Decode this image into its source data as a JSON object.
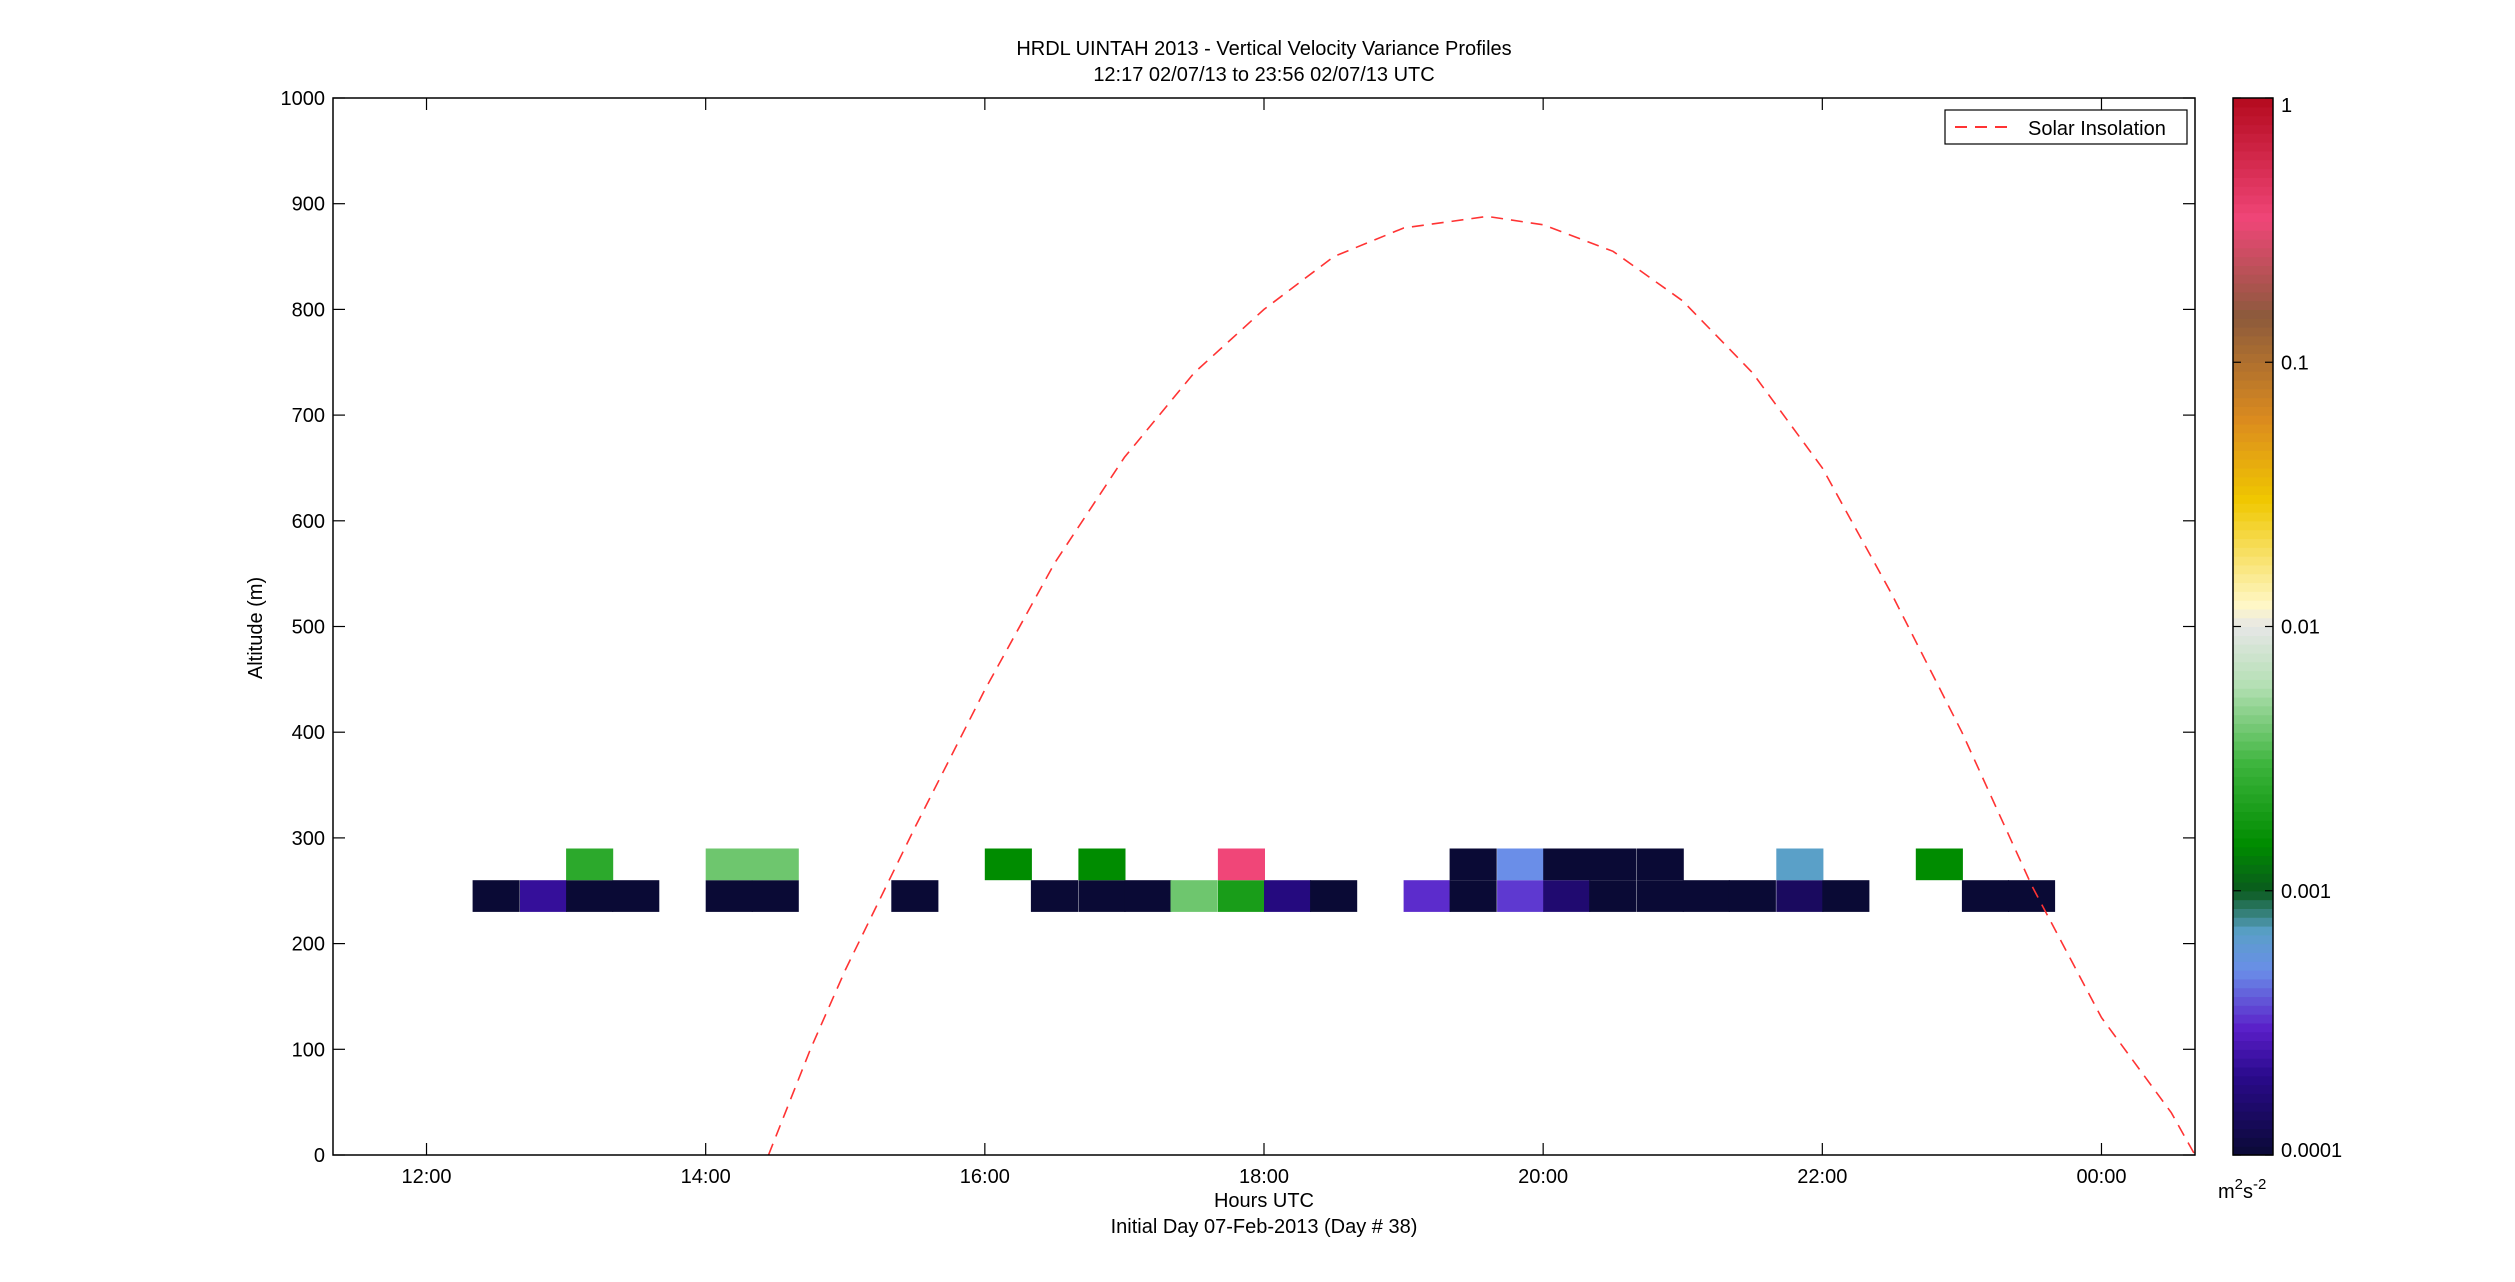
{
  "figure": {
    "title_line1": "HRDL UINTAH 2013 - Vertical Velocity Variance Profiles",
    "title_line2": "12:17 02/07/13 to 23:56 02/07/13  UTC",
    "xlabel": "Hours UTC",
    "footer": "Initial Day 07-Feb-2013 (Day # 38)",
    "ylabel": "Altitude (m)"
  },
  "colorbar": {
    "unit_base": "m",
    "unit_sup1": "2",
    "unit_mid": "s",
    "unit_sup2": "-2",
    "ticks": [
      {
        "label": "1",
        "value": 1
      },
      {
        "label": "0.1",
        "value": 0.1
      },
      {
        "label": "0.01",
        "value": 0.01
      },
      {
        "label": "0.001",
        "value": 0.001
      },
      {
        "label": "0.0001",
        "value": 0.0001
      }
    ],
    "range": [
      0.0001,
      1
    ],
    "scale": "log",
    "stops": [
      {
        "v": 0.0001,
        "color": "#0a0a35"
      },
      {
        "v": 0.0002,
        "color": "#2a0a8c"
      },
      {
        "v": 0.0003,
        "color": "#5a1ec8"
      },
      {
        "v": 0.0005,
        "color": "#6a8ee8"
      },
      {
        "v": 0.0007,
        "color": "#5aa0c8"
      },
      {
        "v": 0.001,
        "color": "#0a5a1e"
      },
      {
        "v": 0.0015,
        "color": "#008c00"
      },
      {
        "v": 0.003,
        "color": "#3cb43c"
      },
      {
        "v": 0.006,
        "color": "#b4e0b4"
      },
      {
        "v": 0.01,
        "color": "#e6e6e6"
      },
      {
        "v": 0.012,
        "color": "#fff8c8"
      },
      {
        "v": 0.03,
        "color": "#f0c800"
      },
      {
        "v": 0.06,
        "color": "#dc8c1e"
      },
      {
        "v": 0.15,
        "color": "#8c5a3c"
      },
      {
        "v": 0.35,
        "color": "#f04678"
      },
      {
        "v": 1,
        "color": "#b40a1e"
      }
    ]
  },
  "legend": {
    "position": "top-right",
    "label": "Solar Insolation"
  },
  "chart_data": {
    "type": "heatmap",
    "title": "HRDL UINTAH 2013 - Vertical Velocity Variance Profiles",
    "xlabel": "Hours UTC",
    "ylabel": "Altitude (m)",
    "x_unit": "hours UTC (continuing past 24 as next day)",
    "xlim": [
      11.33,
      24.67
    ],
    "ylim": [
      0,
      1000
    ],
    "xticks": [
      {
        "value": 12,
        "label": "12:00"
      },
      {
        "value": 14,
        "label": "14:00"
      },
      {
        "value": 16,
        "label": "16:00"
      },
      {
        "value": 18,
        "label": "18:00"
      },
      {
        "value": 20,
        "label": "20:00"
      },
      {
        "value": 22,
        "label": "22:00"
      },
      {
        "value": 24,
        "label": "00:00"
      }
    ],
    "yticks": [
      0,
      100,
      200,
      300,
      400,
      500,
      600,
      700,
      800,
      900,
      1000
    ],
    "cell_width_hours": 0.3333,
    "altitude_bins": [
      {
        "bottom": 230,
        "top": 260
      },
      {
        "bottom": 260,
        "top": 290
      }
    ],
    "cells": [
      {
        "t": 12.33,
        "alt": 245,
        "variance": 0.0001
      },
      {
        "t": 12.67,
        "alt": 245,
        "variance": 0.00022
      },
      {
        "t": 13.0,
        "alt": 245,
        "variance": 0.0001
      },
      {
        "t": 13.33,
        "alt": 245,
        "variance": 0.0001
      },
      {
        "t": 14.0,
        "alt": 245,
        "variance": 0.0001
      },
      {
        "t": 14.33,
        "alt": 245,
        "variance": 0.0001
      },
      {
        "t": 15.33,
        "alt": 245,
        "variance": 0.0001
      },
      {
        "t": 16.33,
        "alt": 245,
        "variance": 0.0001
      },
      {
        "t": 16.67,
        "alt": 245,
        "variance": 0.0001
      },
      {
        "t": 17.0,
        "alt": 245,
        "variance": 0.0001
      },
      {
        "t": 17.33,
        "alt": 245,
        "variance": 0.004
      },
      {
        "t": 17.67,
        "alt": 245,
        "variance": 0.002
      },
      {
        "t": 18.0,
        "alt": 245,
        "variance": 0.00018
      },
      {
        "t": 18.33,
        "alt": 245,
        "variance": 0.0001
      },
      {
        "t": 19.0,
        "alt": 245,
        "variance": 0.00032
      },
      {
        "t": 19.33,
        "alt": 245,
        "variance": 0.0001
      },
      {
        "t": 19.67,
        "alt": 245,
        "variance": 0.00034
      },
      {
        "t": 20.0,
        "alt": 245,
        "variance": 0.00016
      },
      {
        "t": 20.33,
        "alt": 245,
        "variance": 0.0001
      },
      {
        "t": 20.67,
        "alt": 245,
        "variance": 0.0001
      },
      {
        "t": 21.0,
        "alt": 245,
        "variance": 0.0001
      },
      {
        "t": 21.33,
        "alt": 245,
        "variance": 0.0001
      },
      {
        "t": 21.67,
        "alt": 245,
        "variance": 0.00014
      },
      {
        "t": 22.0,
        "alt": 245,
        "variance": 0.0001
      },
      {
        "t": 23.0,
        "alt": 245,
        "variance": 0.0001
      },
      {
        "t": 23.33,
        "alt": 245,
        "variance": 0.0001
      },
      {
        "t": 13.0,
        "alt": 275,
        "variance": 0.0025
      },
      {
        "t": 14.0,
        "alt": 275,
        "variance": 0.004
      },
      {
        "t": 14.33,
        "alt": 275,
        "variance": 0.004
      },
      {
        "t": 16.0,
        "alt": 275,
        "variance": 0.0015
      },
      {
        "t": 16.67,
        "alt": 275,
        "variance": 0.0015
      },
      {
        "t": 17.67,
        "alt": 275,
        "variance": 0.35
      },
      {
        "t": 19.33,
        "alt": 275,
        "variance": 0.0001
      },
      {
        "t": 19.67,
        "alt": 275,
        "variance": 0.0005
      },
      {
        "t": 20.0,
        "alt": 275,
        "variance": 0.0001
      },
      {
        "t": 20.33,
        "alt": 275,
        "variance": 0.0001
      },
      {
        "t": 20.67,
        "alt": 275,
        "variance": 0.0001
      },
      {
        "t": 21.67,
        "alt": 275,
        "variance": 0.0007
      },
      {
        "t": 22.67,
        "alt": 275,
        "variance": 0.0015
      }
    ],
    "series": [
      {
        "name": "Solar Insolation",
        "style": "dashed",
        "color": "#ff3333",
        "x": [
          14.45,
          14.75,
          15.0,
          15.5,
          16.0,
          16.5,
          17.0,
          17.5,
          18.0,
          18.5,
          19.0,
          19.6,
          20.0,
          20.5,
          21.0,
          21.5,
          22.0,
          22.5,
          23.0,
          23.5,
          24.0,
          24.5,
          24.67
        ],
        "y": [
          0,
          100,
          175,
          310,
          440,
          560,
          660,
          740,
          800,
          850,
          877,
          888,
          880,
          855,
          808,
          740,
          650,
          530,
          400,
          255,
          130,
          40,
          0
        ]
      }
    ],
    "colorbar_label": "m2s-2",
    "colorbar_scale": "log",
    "colorbar_range": [
      0.0001,
      1
    ]
  }
}
